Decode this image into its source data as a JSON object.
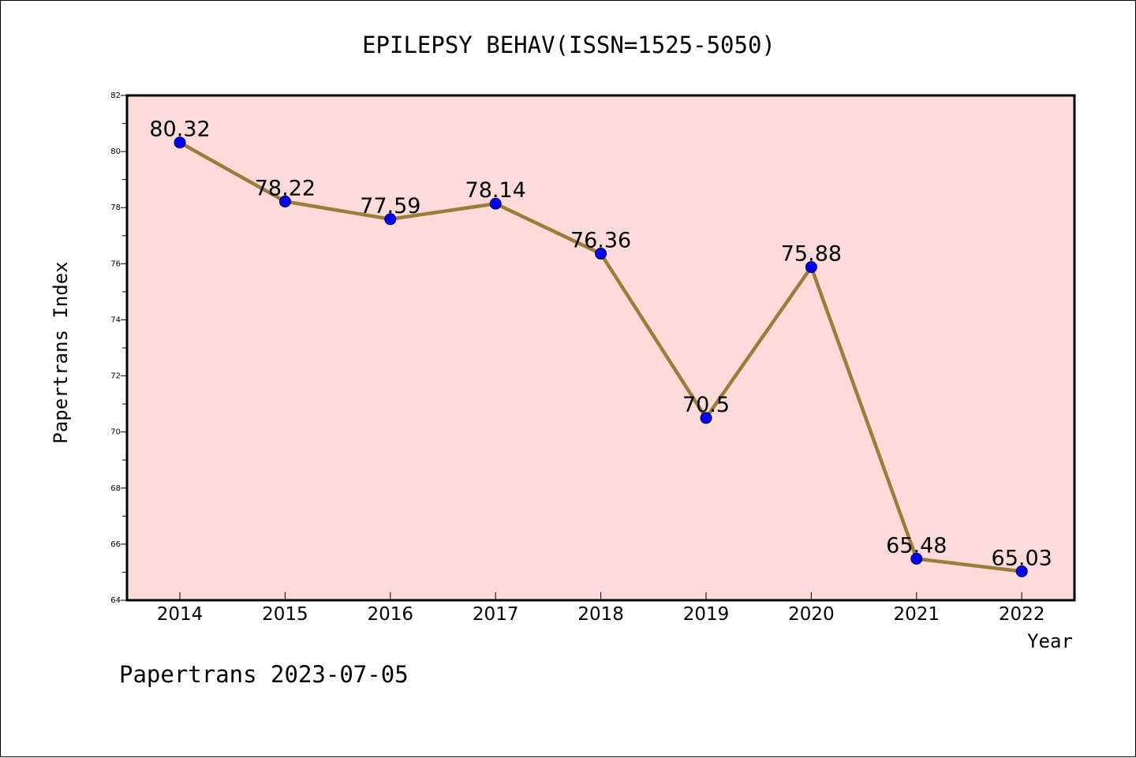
{
  "chart_data": {
    "type": "line",
    "title": "EPILEPSY BEHAV(ISSN=1525-5050)",
    "xlabel": "Year",
    "ylabel": "Papertrans Index",
    "footer": "Papertrans 2023-07-05",
    "x": [
      "2014",
      "2015",
      "2016",
      "2017",
      "2018",
      "2019",
      "2020",
      "2021",
      "2022"
    ],
    "series": [
      {
        "values": [
          80.32,
          78.22,
          77.59,
          78.14,
          76.36,
          70.5,
          75.88,
          65.48,
          65.03
        ],
        "labels": [
          "80.32",
          "78.22",
          "77.59",
          "78.14",
          "76.36",
          "70.5",
          "75.88",
          "65.48",
          "65.03"
        ]
      }
    ],
    "ylim": [
      64,
      82
    ],
    "yticks": [
      "64",
      "66",
      "68",
      "70",
      "72",
      "74",
      "76",
      "78",
      "80",
      "82"
    ],
    "grid": false,
    "legend": "none",
    "colors": {
      "plot_background": "#fddbd8",
      "line": "#9a7d3a",
      "marker": "#0000ff",
      "axis": "#000000"
    }
  }
}
